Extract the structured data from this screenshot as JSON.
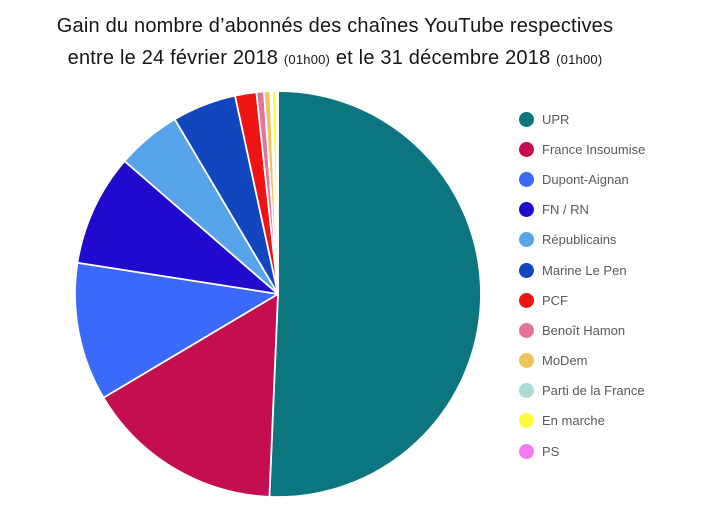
{
  "title": {
    "line1": "Gain du nombre d’abonnés des chaînes YouTube respectives",
    "line2_main1": "entre le 24 février 2018 ",
    "line2_small1": "(01h00)",
    "line2_main2": " et le 31 décembre 2018 ",
    "line2_small2": "(01h00)"
  },
  "chart_data": {
    "type": "pie",
    "title": "Gain du nombre d’abonnés des chaînes YouTube respectives entre le 24 février 2018 (01h00) et le 31 décembre 2018 (01h00)",
    "legend_position": "right",
    "start_angle_deg": 0,
    "direction": "clockwise",
    "slice_border_color": "#ffffff",
    "series": [
      {
        "label": "UPR",
        "value_percent": 50.7,
        "color": "#0b7680"
      },
      {
        "label": "France Insoumise",
        "value_percent": 15.8,
        "color": "#c40e51"
      },
      {
        "label": "Dupont-Aignan",
        "value_percent": 11.0,
        "color": "#3b6afa"
      },
      {
        "label": "FN / RN",
        "value_percent": 8.9,
        "color": "#210ace"
      },
      {
        "label": "Républicains",
        "value_percent": 5.15,
        "color": "#58a4ea"
      },
      {
        "label": "Marine Le Pen",
        "value_percent": 5.1,
        "color": "#1246be"
      },
      {
        "label": "PCF",
        "value_percent": 1.7,
        "color": "#ef1313"
      },
      {
        "label": "Benoît Hamon",
        "value_percent": 0.6,
        "color": "#e4739b"
      },
      {
        "label": "MoDem",
        "value_percent": 0.5,
        "color": "#efc45c"
      },
      {
        "label": "Parti de la France",
        "value_percent": 0.12,
        "color": "#abdbd3"
      },
      {
        "label": "En marche",
        "value_percent": 0.35,
        "color": "#fcfc3c"
      },
      {
        "label": "PS",
        "value_percent": 0.13,
        "color": "#f47cf0"
      }
    ]
  }
}
